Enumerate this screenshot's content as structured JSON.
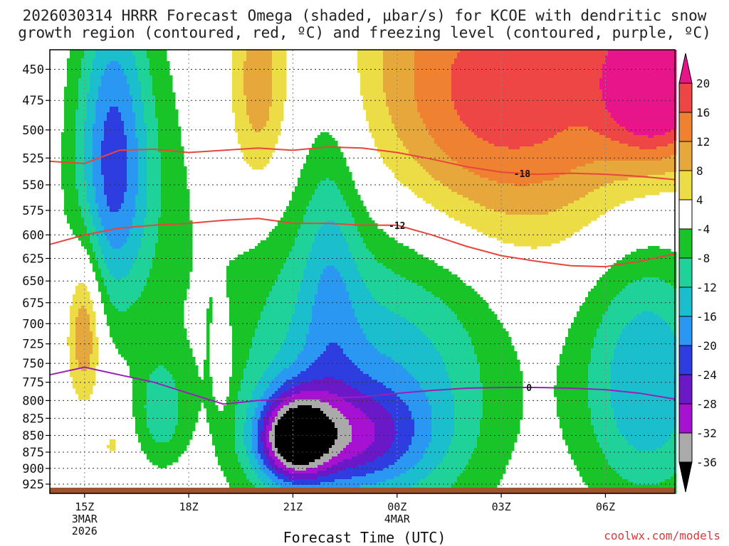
{
  "title_line1": "2026030314 HRRR Forecast Omega (shaded, μbar/s) for KCOE with dendritic snow",
  "title_line2": "growth region (contoured, red, ºC) and freezing level (contoured, purple, ºC)",
  "credit": "coolwx.com/models",
  "chart_data": {
    "type": "heatmap",
    "xlabel": "Forecast Time (UTC)",
    "x_ticks": [
      {
        "hour": 15,
        "lines": [
          "15Z",
          "3MAR",
          "2026"
        ]
      },
      {
        "hour": 18,
        "lines": [
          "18Z"
        ]
      },
      {
        "hour": 21,
        "lines": [
          "21Z"
        ]
      },
      {
        "hour": 24,
        "lines": [
          "00Z",
          "4MAR"
        ]
      },
      {
        "hour": 27,
        "lines": [
          "03Z"
        ]
      },
      {
        "hour": 30,
        "lines": [
          "06Z"
        ]
      }
    ],
    "x_range_hours": [
      14,
      32
    ],
    "ylabel": "",
    "y_ticks": [
      450,
      475,
      500,
      525,
      550,
      575,
      600,
      625,
      650,
      675,
      700,
      725,
      750,
      775,
      800,
      825,
      850,
      875,
      900,
      925
    ],
    "y_range": [
      435,
      940
    ],
    "grid": true,
    "colorbar": {
      "levels": [
        20,
        16,
        12,
        8,
        4,
        -4,
        -8,
        -12,
        -16,
        -20,
        -24,
        -28,
        -32,
        -36
      ],
      "bins": [
        {
          "lo": 20,
          "hi": 100,
          "color": "#e8148a"
        },
        {
          "lo": 16,
          "hi": 20,
          "color": "#ee4545"
        },
        {
          "lo": 12,
          "hi": 16,
          "color": "#ee8230"
        },
        {
          "lo": 8,
          "hi": 12,
          "color": "#e6a83a"
        },
        {
          "lo": 4,
          "hi": 8,
          "color": "#ecdc46"
        },
        {
          "lo": -4,
          "hi": 4,
          "color": "#ffffff"
        },
        {
          "lo": -8,
          "hi": -4,
          "color": "#18c428"
        },
        {
          "lo": -12,
          "hi": -8,
          "color": "#1ed29a"
        },
        {
          "lo": -16,
          "hi": -12,
          "color": "#1bbecc"
        },
        {
          "lo": -20,
          "hi": -16,
          "color": "#2a98f2"
        },
        {
          "lo": -24,
          "hi": -20,
          "color": "#2e3de0"
        },
        {
          "lo": -28,
          "hi": -24,
          "color": "#6a18c8"
        },
        {
          "lo": -32,
          "hi": -28,
          "color": "#a712d2"
        },
        {
          "lo": -36,
          "hi": -32,
          "color": "#aaaaaa"
        },
        {
          "lo": -100,
          "hi": -36,
          "color": "#000000"
        }
      ]
    },
    "omega_features": [
      {
        "hour": 31.5,
        "p": 460,
        "sx": 1.0,
        "sp": 40,
        "amp": 22
      },
      {
        "hour": 29.0,
        "p": 470,
        "sx": 3.5,
        "sp": 90,
        "amp": 14
      },
      {
        "hour": 25.5,
        "p": 480,
        "sx": 2.2,
        "sp": 110,
        "amp": 10
      },
      {
        "hour": 20.0,
        "p": 465,
        "sx": 0.6,
        "sp": 70,
        "amp": 11
      },
      {
        "hour": 15.0,
        "p": 705,
        "sx": 0.35,
        "sp": 65,
        "amp": 14
      },
      {
        "hour": 19.0,
        "p": 745,
        "sx": 0.15,
        "sp": 40,
        "amp": 7
      },
      {
        "hour": 15.8,
        "p": 865,
        "sx": 0.15,
        "sp": 12,
        "amp": 6
      },
      {
        "hour": 18.0,
        "p": 905,
        "sx": 0.12,
        "sp": 10,
        "amp": 6
      },
      {
        "hour": 21.0,
        "p": 855,
        "sx": 0.7,
        "sp": 45,
        "amp": -28
      },
      {
        "hour": 22.6,
        "p": 855,
        "sx": 1.5,
        "sp": 55,
        "amp": -17
      },
      {
        "hour": 21.7,
        "p": 760,
        "sx": 2.0,
        "sp": 160,
        "amp": -12
      },
      {
        "hour": 15.8,
        "p": 520,
        "sx": 0.7,
        "sp": 100,
        "amp": -16
      },
      {
        "hour": 16.3,
        "p": 560,
        "sx": 1.3,
        "sp": 120,
        "amp": -7
      },
      {
        "hour": 31.2,
        "p": 775,
        "sx": 1.4,
        "sp": 130,
        "amp": -16
      },
      {
        "hour": 17.2,
        "p": 815,
        "sx": 0.5,
        "sp": 55,
        "amp": -10
      },
      {
        "hour": 22.1,
        "p": 620,
        "sx": 0.6,
        "sp": 130,
        "amp": -7
      },
      {
        "hour": 25.0,
        "p": 760,
        "sx": 1.8,
        "sp": 170,
        "amp": -10
      }
    ],
    "contours": [
      {
        "label": "-18",
        "color": "#e8453c",
        "label_hour": 27.6,
        "points": [
          [
            14,
            528
          ],
          [
            15,
            530
          ],
          [
            16,
            518
          ],
          [
            17,
            517
          ],
          [
            18,
            520
          ],
          [
            19,
            518
          ],
          [
            20,
            516
          ],
          [
            21,
            518
          ],
          [
            22,
            515
          ],
          [
            23,
            516
          ],
          [
            24,
            520
          ],
          [
            25,
            526
          ],
          [
            26,
            533
          ],
          [
            27,
            538
          ],
          [
            28,
            540
          ],
          [
            29,
            539
          ],
          [
            30,
            540
          ],
          [
            31,
            542
          ],
          [
            32,
            545
          ]
        ]
      },
      {
        "label": "-12",
        "color": "#e8453c",
        "label_hour": 24.0,
        "points": [
          [
            14,
            610
          ],
          [
            15,
            600
          ],
          [
            16,
            593
          ],
          [
            17,
            590
          ],
          [
            18,
            588
          ],
          [
            19,
            585
          ],
          [
            20,
            583
          ],
          [
            21,
            588
          ],
          [
            22,
            588
          ],
          [
            23,
            590
          ],
          [
            24,
            590
          ],
          [
            25,
            600
          ],
          [
            26,
            612
          ],
          [
            27,
            622
          ],
          [
            28,
            628
          ],
          [
            29,
            633
          ],
          [
            30,
            634
          ],
          [
            31,
            628
          ],
          [
            32,
            620
          ]
        ]
      },
      {
        "label": "0",
        "color": "#9a1fb8",
        "label_hour": 27.8,
        "points": [
          [
            14,
            765
          ],
          [
            15,
            755
          ],
          [
            16,
            765
          ],
          [
            17,
            775
          ],
          [
            18,
            790
          ],
          [
            19,
            805
          ],
          [
            20,
            800
          ],
          [
            21,
            797
          ],
          [
            22,
            797
          ],
          [
            23,
            795
          ],
          [
            24,
            790
          ],
          [
            25,
            786
          ],
          [
            26,
            783
          ],
          [
            27,
            782
          ],
          [
            28,
            782
          ],
          [
            29,
            783
          ],
          [
            30,
            785
          ],
          [
            31,
            790
          ],
          [
            32,
            798
          ]
        ]
      }
    ]
  }
}
